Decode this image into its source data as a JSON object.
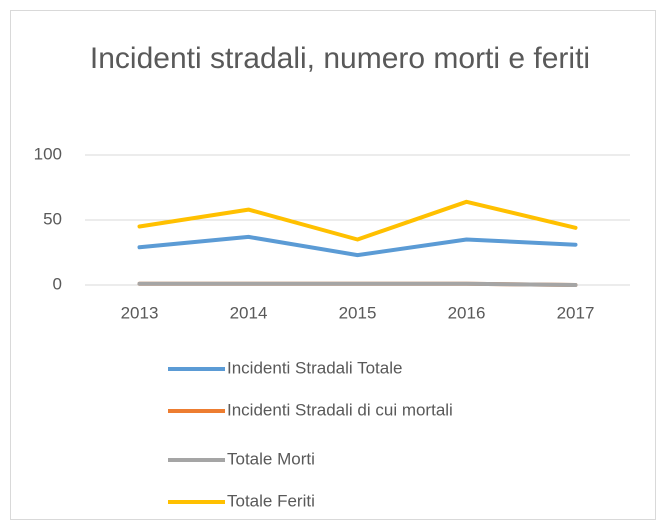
{
  "chart_data": {
    "type": "line",
    "title": "Incidenti stradali, numero morti e feriti",
    "categories": [
      "2013",
      "2014",
      "2015",
      "2016",
      "2017"
    ],
    "series": [
      {
        "name": "Incidenti Stradali Totale",
        "color": "#5b9bd5",
        "values": [
          29,
          37,
          23,
          35,
          31
        ]
      },
      {
        "name": "Incidenti Stradali di cui mortali",
        "color": "#ed7d31",
        "values": [
          1,
          1,
          1,
          1,
          0
        ]
      },
      {
        "name": "Totale Morti",
        "color": "#a5a5a5",
        "values": [
          1,
          1,
          1,
          1,
          0
        ]
      },
      {
        "name": "Totale Feriti",
        "color": "#ffc000",
        "values": [
          45,
          58,
          35,
          64,
          44
        ]
      }
    ],
    "ylim": [
      0,
      100
    ],
    "yticks": [
      0,
      50,
      100
    ],
    "grid": true,
    "legend": "bottom"
  }
}
